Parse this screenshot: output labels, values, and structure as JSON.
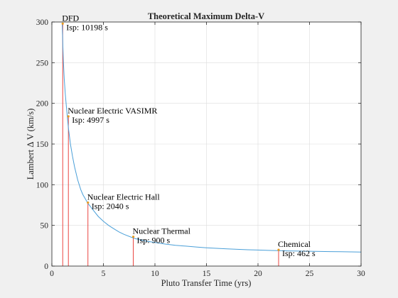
{
  "chart_data": {
    "type": "line",
    "title": "Theoretical Maximum Delta-V",
    "xlabel": "Pluto Transfer Time (yrs)",
    "ylabel": "Lambert Δ V (km/s)",
    "xlim": [
      0,
      30
    ],
    "ylim": [
      0,
      300
    ],
    "xticks": [
      0,
      5,
      10,
      15,
      20,
      25,
      30
    ],
    "yticks": [
      0,
      50,
      100,
      150,
      200,
      250,
      300
    ],
    "grid": true,
    "colors": {
      "curve": "#4a9fd8",
      "stem": "#e8312c",
      "marker": "#e89a1e",
      "grid": "#dcdcdc",
      "axes": "#262626"
    },
    "series": [
      {
        "x": [
          1.0,
          1.1,
          1.2,
          1.3,
          1.4,
          1.5,
          1.6,
          1.8,
          2.0,
          2.2,
          2.5,
          2.8,
          3.0,
          3.5,
          4.0,
          4.5,
          5.0,
          5.5,
          6.0,
          6.5,
          7.0,
          8.0,
          9.0,
          10.0,
          11.0,
          12.0,
          13.0,
          14.0,
          15.0,
          16.0,
          17.0,
          18.0,
          19.0,
          20.0,
          21.0,
          22.0,
          23.0,
          24.0,
          25.0,
          26.0,
          27.0,
          28.0,
          29.0,
          30.0
        ],
        "y": [
          298,
          255,
          230,
          212,
          197,
          183,
          170,
          150,
          135,
          122,
          106,
          94,
          88,
          77,
          69,
          61,
          55,
          50,
          46,
          42,
          39,
          34,
          31,
          29,
          27,
          25.5,
          24.5,
          23.5,
          22.5,
          21.8,
          21.2,
          20.6,
          20.1,
          19.7,
          19.3,
          19,
          18.7,
          18.4,
          18.2,
          18,
          17.8,
          17.6,
          17.4,
          17.3
        ]
      }
    ],
    "annotations": [
      {
        "name": "DFD",
        "isp": "Isp: 10198 s",
        "x": 1.05,
        "y": 298
      },
      {
        "name": "Nuclear Electric VASIMR",
        "isp": "Isp: 4997 s",
        "x": 1.6,
        "y": 184
      },
      {
        "name": "Nuclear Electric Hall",
        "isp": "Isp: 2040 s",
        "x": 3.5,
        "y": 78
      },
      {
        "name": "Nuclear Thermal",
        "isp": "Isp: 900 s",
        "x": 7.9,
        "y": 36
      },
      {
        "name": "Chemical",
        "isp": "Isp: 462 s",
        "x": 22.0,
        "y": 20
      }
    ]
  }
}
